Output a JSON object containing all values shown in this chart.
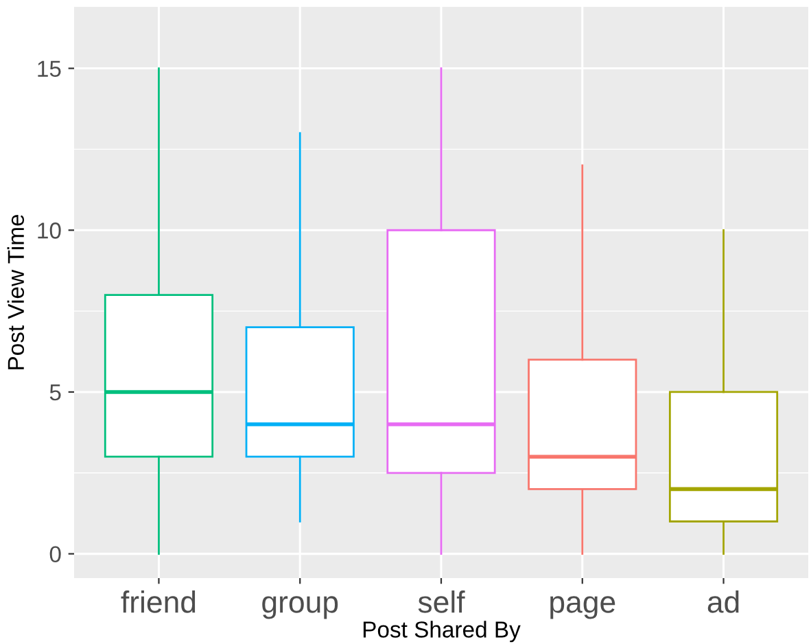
{
  "chart_data": {
    "type": "box",
    "xlabel": "Post Shared By",
    "ylabel": "Post View Time",
    "categories": [
      "friend",
      "group",
      "self",
      "page",
      "ad"
    ],
    "colors": [
      "#00BF7D",
      "#00B0F6",
      "#E76BF3",
      "#F8766D",
      "#A3A500"
    ],
    "boxes": [
      {
        "low": 0,
        "q1": 3,
        "median": 5,
        "q3": 8,
        "high": 15
      },
      {
        "low": 1,
        "q1": 3,
        "median": 4,
        "q3": 7,
        "high": 13
      },
      {
        "low": 0,
        "q1": 2.5,
        "median": 4,
        "q3": 10,
        "high": 15
      },
      {
        "low": 0,
        "q1": 2,
        "median": 3,
        "q3": 6,
        "high": 12
      },
      {
        "low": 0,
        "q1": 1,
        "median": 2,
        "q3": 5,
        "high": 10
      }
    ],
    "ylim": [
      -0.75,
      16.9
    ],
    "yticks": [
      0,
      5,
      10,
      15
    ],
    "grid": true,
    "legend": false
  }
}
